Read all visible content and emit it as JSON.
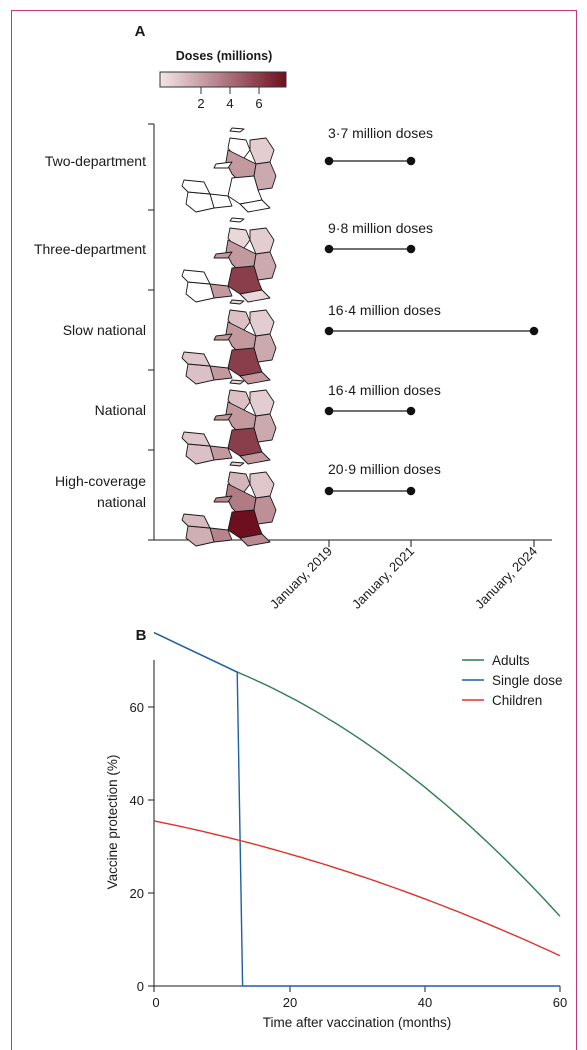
{
  "panel_a": {
    "label": "A",
    "legend": {
      "title": "Doses (millions)",
      "ticks": [
        "2",
        "4",
        "6"
      ],
      "color_low": "#f2e6e8",
      "color_high": "#6e0f1f"
    },
    "x_ticks": [
      "January, 2019",
      "January, 2021",
      "January, 2024"
    ]
  },
  "panel_b": {
    "label": "B",
    "xlabel": "Time after vaccination (months)",
    "ylabel": "Vaccine protection (%)",
    "x_ticks": [
      "0",
      "20",
      "40",
      "60"
    ],
    "y_ticks": [
      "0",
      "20",
      "40",
      "60"
    ]
  },
  "chart_data": [
    {
      "type": "timeline",
      "categories": [
        "Two-department",
        "Three-department",
        "Slow national",
        "National",
        "High-coverage national"
      ],
      "doses_labels": [
        "3·7 million doses",
        "9·8 million doses",
        "16·4 million doses",
        "16·4 million doses",
        "20·9 million doses"
      ],
      "doses_millions": [
        3.7,
        9.8,
        16.4,
        16.4,
        20.9
      ],
      "start_year": [
        2019,
        2019,
        2019,
        2019,
        2019
      ],
      "end_year": [
        2021,
        2021,
        2024,
        2021,
        2021
      ],
      "xaxis_ticks": [
        "January, 2019",
        "January, 2021",
        "January, 2024"
      ],
      "legend_title": "Doses (millions)",
      "legend_ticks": [
        2,
        4,
        6
      ]
    },
    {
      "type": "line",
      "xlabel": "Time after vaccination (months)",
      "ylabel": "Vaccine protection (%)",
      "xlim": [
        0,
        60
      ],
      "ylim": [
        0,
        80
      ],
      "legend_position": "top-right",
      "series": [
        {
          "name": "Adults",
          "color": "#2e7d4f",
          "x": [
            0,
            12.3,
            20,
            30,
            40,
            50,
            60
          ],
          "y": [
            76,
            67.5,
            62,
            52,
            42,
            30,
            15
          ]
        },
        {
          "name": "Single dose",
          "color": "#1f5fa6",
          "x": [
            0,
            12.3,
            13.1,
            60
          ],
          "y": [
            76,
            67.5,
            0,
            0
          ]
        },
        {
          "name": "Children",
          "color": "#e0322a",
          "x": [
            0,
            10,
            20,
            30,
            40,
            50,
            60
          ],
          "y": [
            35.5,
            32,
            28.5,
            24.5,
            19.5,
            13.5,
            6.5
          ]
        }
      ]
    }
  ]
}
